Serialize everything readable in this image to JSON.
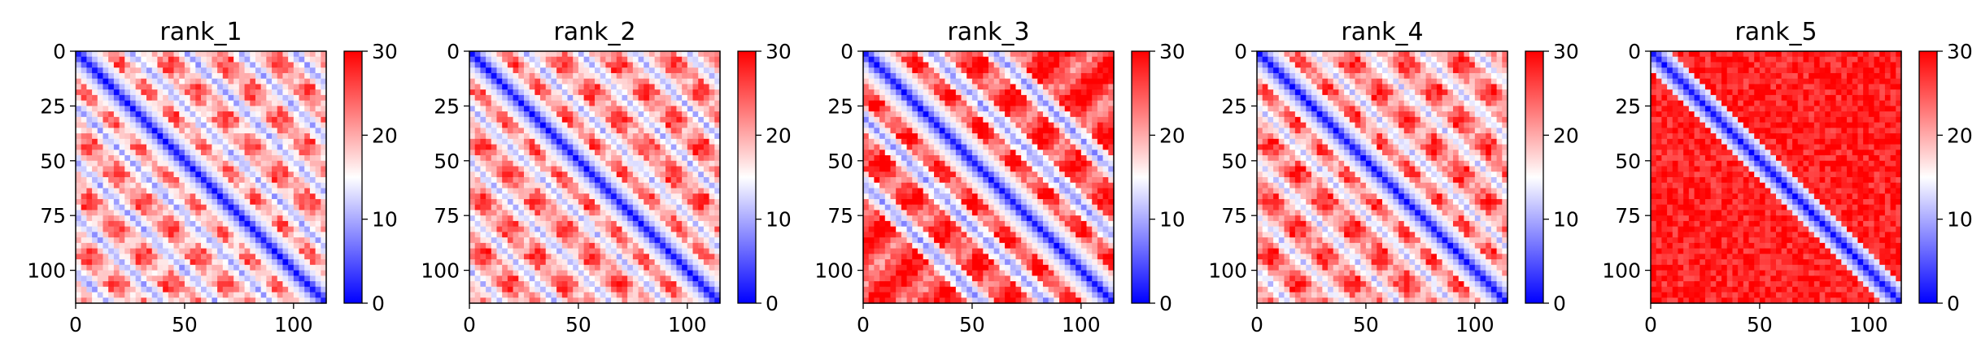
{
  "chart_data": [
    {
      "type": "heatmap",
      "title": "rank_1",
      "xlim": [
        0,
        115
      ],
      "ylim": [
        115,
        0
      ],
      "xticks": [
        0,
        50,
        100
      ],
      "yticks": [
        0,
        25,
        50,
        75,
        100
      ],
      "colorbar": {
        "range": [
          0,
          30
        ],
        "ticks": [
          0,
          10,
          20,
          30
        ],
        "colormap": [
          "#0000ff",
          "#ffffff",
          "#ff0000"
        ]
      },
      "pattern": {
        "diagonal_band_width": 5,
        "off_diagonal_period": 25,
        "blob_centers_offsets": [
          25,
          50,
          75,
          100
        ],
        "off_diagonal_level": 22,
        "blob_level": 10
      }
    },
    {
      "type": "heatmap",
      "title": "rank_2",
      "xlim": [
        0,
        115
      ],
      "ylim": [
        115,
        0
      ],
      "xticks": [
        0,
        50,
        100
      ],
      "yticks": [
        0,
        25,
        50,
        75,
        100
      ],
      "colorbar": {
        "range": [
          0,
          30
        ],
        "ticks": [
          0,
          10,
          20,
          30
        ],
        "colormap": [
          "#0000ff",
          "#ffffff",
          "#ff0000"
        ]
      },
      "pattern": {
        "diagonal_band_width": 5,
        "off_diagonal_period": 25,
        "blob_centers_offsets": [
          25,
          50,
          75,
          100
        ],
        "off_diagonal_level": 23,
        "blob_level": 11
      }
    },
    {
      "type": "heatmap",
      "title": "rank_3",
      "xlim": [
        0,
        115
      ],
      "ylim": [
        115,
        0
      ],
      "xticks": [
        0,
        50,
        100
      ],
      "yticks": [
        0,
        25,
        50,
        75,
        100
      ],
      "colorbar": {
        "range": [
          0,
          30
        ],
        "ticks": [
          0,
          10,
          20,
          30
        ],
        "colormap": [
          "#0000ff",
          "#ffffff",
          "#ff0000"
        ]
      },
      "pattern": {
        "diagonal_band_width": 6,
        "off_diagonal_period": 30,
        "blob_centers_offsets": [
          30,
          60
        ],
        "off_diagonal_level": 26,
        "blob_level": 9
      }
    },
    {
      "type": "heatmap",
      "title": "rank_4",
      "xlim": [
        0,
        115
      ],
      "ylim": [
        115,
        0
      ],
      "xticks": [
        0,
        50,
        100
      ],
      "yticks": [
        0,
        25,
        50,
        75,
        100
      ],
      "colorbar": {
        "range": [
          0,
          30
        ],
        "ticks": [
          0,
          10,
          20,
          30
        ],
        "colormap": [
          "#0000ff",
          "#ffffff",
          "#ff0000"
        ]
      },
      "pattern": {
        "diagonal_band_width": 5,
        "off_diagonal_period": 25,
        "blob_centers_offsets": [
          25,
          50,
          75,
          100
        ],
        "off_diagonal_level": 24,
        "blob_level": 12
      }
    },
    {
      "type": "heatmap",
      "title": "rank_5",
      "xlim": [
        0,
        115
      ],
      "ylim": [
        115,
        0
      ],
      "xticks": [
        0,
        50,
        100
      ],
      "yticks": [
        0,
        25,
        50,
        75,
        100
      ],
      "colorbar": {
        "range": [
          0,
          30
        ],
        "ticks": [
          0,
          10,
          20,
          30
        ],
        "colormap": [
          "#0000ff",
          "#ffffff",
          "#ff0000"
        ]
      },
      "pattern": {
        "diagonal_band_width": 4,
        "off_diagonal_period": 0,
        "blob_centers_offsets": [],
        "off_diagonal_level": 28,
        "blob_level": 20
      }
    }
  ]
}
